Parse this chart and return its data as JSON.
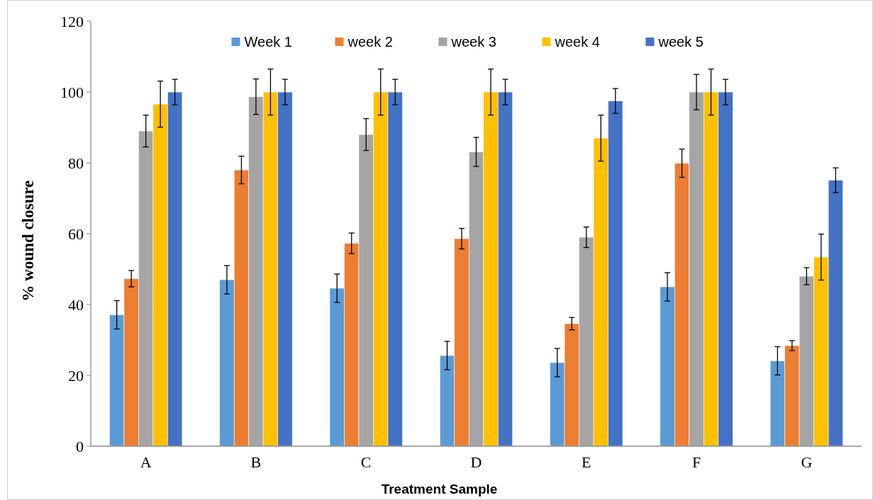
{
  "chart_data": {
    "type": "bar",
    "xlabel": "Treatment Sample",
    "ylabel": "% wound closure",
    "categories": [
      "A",
      "B",
      "C",
      "D",
      "E",
      "F",
      "G"
    ],
    "series": [
      {
        "name": "Week 1",
        "color": "#5b9bd5",
        "values": [
          37.1,
          47,
          44.6,
          25.6,
          23.6,
          45,
          24.1
        ],
        "errors": [
          4,
          4,
          4,
          4,
          4,
          4,
          4
        ]
      },
      {
        "name": "week 2",
        "color": "#ed7d31",
        "values": [
          47.3,
          78,
          57.3,
          58.6,
          34.6,
          79.9,
          28.4
        ],
        "errors": [
          2.3,
          3.9,
          2.9,
          2.9,
          1.75,
          4,
          1.4
        ]
      },
      {
        "name": "week 3",
        "color": "#a5a5a5",
        "values": [
          89,
          98.7,
          88,
          83.1,
          59,
          100,
          48
        ],
        "errors": [
          4.5,
          5,
          4.5,
          4.1,
          2.9,
          5,
          2.4
        ]
      },
      {
        "name": "week 4",
        "color": "#ffc000",
        "values": [
          96.6,
          100,
          100,
          100,
          87,
          100,
          53.4
        ],
        "errors": [
          6.5,
          6.5,
          6.5,
          6.5,
          6.5,
          6.5,
          6.5
        ]
      },
      {
        "name": "week 5",
        "color": "#4472c4",
        "values": [
          100,
          100,
          100,
          100,
          97.5,
          100,
          75.1
        ],
        "errors": [
          3.6,
          3.6,
          3.6,
          3.6,
          3.5,
          3.6,
          3.5
        ]
      }
    ],
    "ylim": [
      0,
      120
    ],
    "yticks": [
      0,
      20,
      40,
      60,
      80,
      100,
      120
    ],
    "grid": false,
    "legend": "top"
  }
}
